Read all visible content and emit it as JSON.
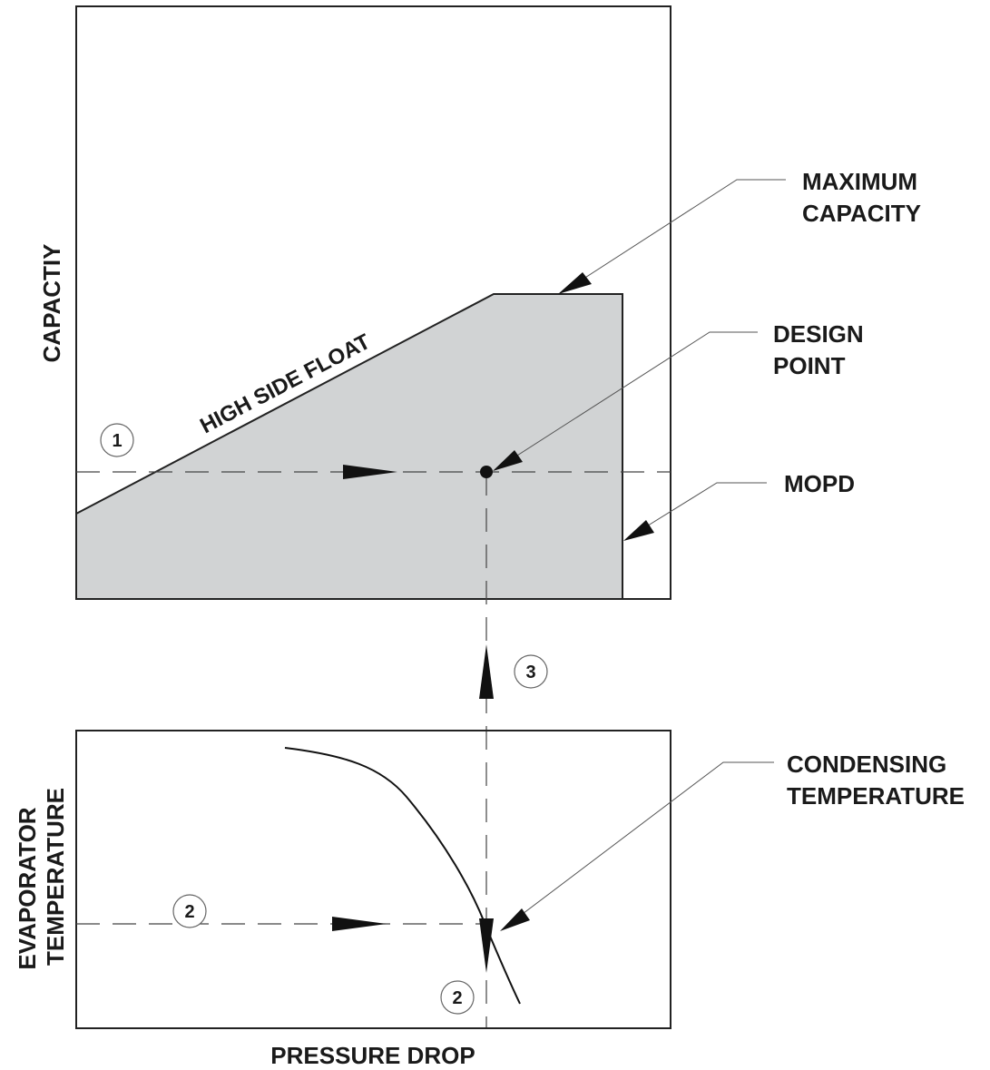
{
  "upper_chart": {
    "y_axis_label": "CAPACTIY",
    "curve_label": "HIGH SIDE FLOAT",
    "step_marker": "1",
    "fill_color": "#d1d3d4",
    "callouts": {
      "maximum_capacity": [
        "MAXIMUM",
        "CAPACITY"
      ],
      "design_point": [
        "DESIGN",
        "POINT"
      ],
      "mopd": "MOPD"
    }
  },
  "transfer": {
    "step_marker": "3"
  },
  "lower_chart": {
    "y_axis_label_line1": "EVAPORATOR",
    "y_axis_label_line2": "TEMPERATURE",
    "x_axis_label": "PRESSURE DROP",
    "step_marker_left": "2",
    "step_marker_bottom": "2",
    "callouts": {
      "condensing_temperature": [
        "CONDENSING",
        "TEMPERATURE"
      ]
    }
  },
  "colors": {
    "line": "#222222",
    "shaded_region": "#d1d3d4"
  }
}
